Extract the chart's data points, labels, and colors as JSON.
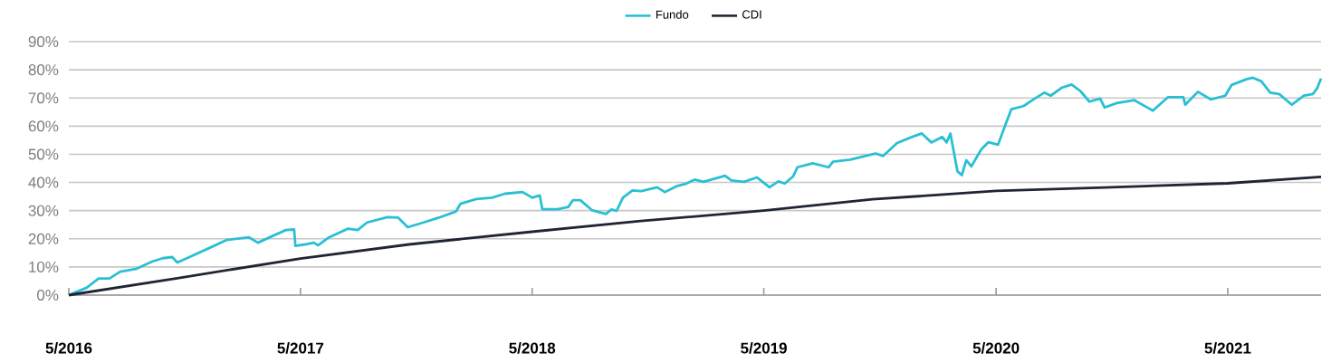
{
  "chart_data": {
    "type": "line",
    "xlim": [
      "2016-05-01",
      "2021-09-25"
    ],
    "ylim": [
      0,
      90
    ],
    "xticks": [
      {
        "value": "2016-05",
        "label": "5/2016"
      },
      {
        "value": "2017-05",
        "label": "5/2017"
      },
      {
        "value": "2018-05",
        "label": "5/2018"
      },
      {
        "value": "2019-05",
        "label": "5/2019"
      },
      {
        "value": "2020-05",
        "label": "5/2020"
      },
      {
        "value": "2021-05",
        "label": "5/2021"
      }
    ],
    "yticks": [
      {
        "value": 0,
        "label": "0%"
      },
      {
        "value": 10,
        "label": "10%"
      },
      {
        "value": 20,
        "label": "20%"
      },
      {
        "value": 30,
        "label": "30%"
      },
      {
        "value": 40,
        "label": "40%"
      },
      {
        "value": 50,
        "label": "50%"
      },
      {
        "value": 60,
        "label": "60%"
      },
      {
        "value": 70,
        "label": "70%"
      },
      {
        "value": 80,
        "label": "80%"
      },
      {
        "value": 90,
        "label": "90%"
      }
    ],
    "grid": "y",
    "legend": "top",
    "marker": "none",
    "line_style": "solid",
    "series": [
      {
        "name": "Fundo",
        "color": "#29c0d3",
        "x": [
          "2016-05-04",
          "2016-05-29",
          "2016-06-17",
          "2016-07-04",
          "2016-07-21",
          "2016-08-16",
          "2016-09-09",
          "2016-09-26",
          "2016-10-11",
          "2016-10-19",
          "2016-11-07",
          "2016-12-11",
          "2017-01-05",
          "2017-02-09",
          "2017-02-23",
          "2017-03-19",
          "2017-04-08",
          "2017-04-21",
          "2017-04-23",
          "2017-05-08",
          "2017-05-22",
          "2017-05-29",
          "2017-06-15",
          "2017-07-15",
          "2017-07-30",
          "2017-08-14",
          "2017-09-15",
          "2017-10-02",
          "2017-10-17",
          "2017-11-11",
          "2017-12-05",
          "2018-01-01",
          "2018-01-08",
          "2018-02-02",
          "2018-02-27",
          "2018-03-19",
          "2018-04-16",
          "2018-05-01",
          "2018-05-13",
          "2018-05-17",
          "2018-06-10",
          "2018-06-27",
          "2018-07-04",
          "2018-07-16",
          "2018-08-03",
          "2018-08-25",
          "2018-09-03",
          "2018-09-11",
          "2018-09-21",
          "2018-10-06",
          "2018-10-20",
          "2018-11-14",
          "2018-11-26",
          "2018-12-16",
          "2018-12-30",
          "2019-01-12",
          "2019-01-26",
          "2019-03-01",
          "2019-03-11",
          "2019-03-31",
          "2019-04-20",
          "2019-05-10",
          "2019-05-24",
          "2019-06-03",
          "2019-06-16",
          "2019-06-23",
          "2019-07-17",
          "2019-08-11",
          "2019-08-18",
          "2019-09-14",
          "2019-10-24",
          "2019-11-05",
          "2019-11-27",
          "2019-12-21",
          "2020-01-05",
          "2020-01-20",
          "2020-02-06",
          "2020-02-13",
          "2020-02-19",
          "2020-03-01",
          "2020-03-08",
          "2020-03-15",
          "2020-03-23",
          "2020-04-02",
          "2020-04-08",
          "2020-04-19",
          "2020-05-04",
          "2020-05-16",
          "2020-05-25",
          "2020-06-13",
          "2020-07-01",
          "2020-07-16",
          "2020-07-26",
          "2020-08-13",
          "2020-08-28",
          "2020-09-11",
          "2020-09-25",
          "2020-10-12",
          "2020-10-19",
          "2020-11-07",
          "2020-12-05",
          "2021-01-03",
          "2021-01-27",
          "2021-02-20",
          "2021-02-23",
          "2021-03-15",
          "2021-04-04",
          "2021-04-27",
          "2021-05-07",
          "2021-05-31",
          "2021-06-09",
          "2021-06-23",
          "2021-07-07",
          "2021-07-21",
          "2021-08-10",
          "2021-08-29",
          "2021-09-12",
          "2021-09-19",
          "2021-09-25"
        ],
        "values": [
          0.3,
          2.6,
          5.9,
          5.9,
          8.3,
          9.4,
          11.9,
          13.1,
          13.5,
          11.6,
          13.5,
          17.0,
          19.6,
          20.5,
          18.6,
          21.1,
          23.1,
          23.3,
          17.5,
          18.0,
          18.6,
          17.7,
          20.5,
          23.6,
          23.1,
          25.8,
          27.7,
          27.5,
          24.1,
          25.8,
          27.5,
          29.7,
          32.4,
          34.1,
          34.6,
          36.0,
          36.6,
          34.6,
          35.4,
          30.5,
          30.5,
          31.3,
          33.7,
          33.7,
          30.2,
          28.8,
          30.4,
          29.9,
          34.6,
          37.2,
          36.9,
          38.3,
          36.6,
          38.8,
          39.6,
          41.0,
          40.2,
          42.4,
          40.7,
          40.2,
          41.8,
          38.3,
          40.4,
          39.6,
          42.1,
          45.4,
          46.8,
          45.4,
          47.4,
          48.1,
          50.3,
          49.4,
          54.0,
          56.2,
          57.4,
          54.2,
          56.2,
          54.2,
          57.4,
          44.0,
          42.6,
          47.9,
          45.7,
          49.6,
          51.8,
          54.3,
          53.4,
          60.7,
          66.0,
          67.1,
          69.8,
          71.9,
          70.8,
          73.7,
          74.8,
          72.4,
          68.7,
          69.8,
          66.6,
          68.2,
          69.2,
          65.5,
          70.3,
          70.3,
          67.6,
          72.2,
          69.5,
          70.8,
          74.6,
          76.7,
          77.2,
          75.9,
          71.9,
          71.4,
          67.6,
          70.8,
          71.4,
          73.5,
          76.9
        ]
      },
      {
        "name": "CDI",
        "color": "#1f2533",
        "x": [
          "2016-05-01",
          "2016-10-19",
          "2017-05-01",
          "2017-10-19",
          "2018-05-01",
          "2018-10-19",
          "2019-05-01",
          "2019-10-19",
          "2020-05-01",
          "2020-10-19",
          "2021-05-01",
          "2021-09-25"
        ],
        "values": [
          0,
          6,
          13,
          18,
          22.5,
          26.3,
          30,
          34,
          37,
          38.2,
          39.7,
          42
        ]
      }
    ]
  }
}
